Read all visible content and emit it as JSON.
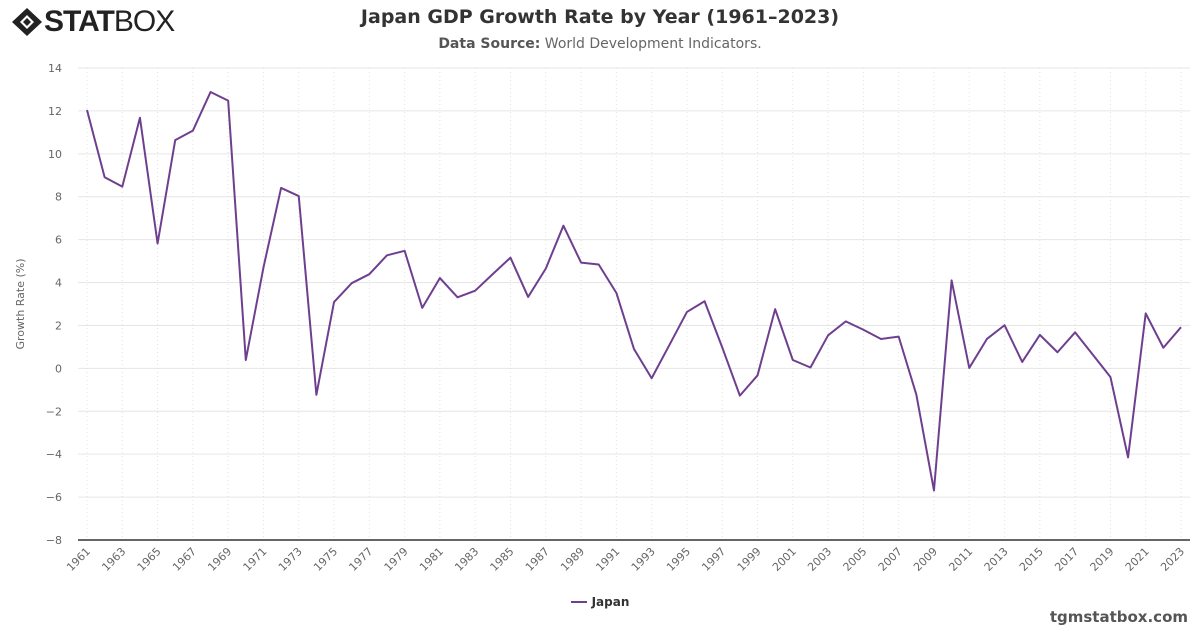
{
  "brand": {
    "logo_text_bold": "STAT",
    "logo_text_light": "BOX",
    "watermark": "tgmstatbox.com"
  },
  "chart_data": {
    "type": "line",
    "title": "Japan GDP Growth Rate by Year (1961–2023)",
    "subtitle_label": "Data Source:",
    "subtitle_value": " World Development Indicators.",
    "xlabel": "",
    "ylabel": "Growth Rate (%)",
    "ylim": [
      -8,
      14
    ],
    "yticks": [
      -8,
      -6,
      -4,
      -2,
      0,
      2,
      4,
      6,
      8,
      10,
      12,
      14
    ],
    "xticks": [
      1961,
      1963,
      1965,
      1967,
      1969,
      1971,
      1973,
      1975,
      1977,
      1979,
      1981,
      1983,
      1985,
      1987,
      1989,
      1991,
      1993,
      1995,
      1997,
      1999,
      2001,
      2003,
      2005,
      2007,
      2009,
      2011,
      2013,
      2015,
      2017,
      2019,
      2021,
      2023
    ],
    "grid": true,
    "legend": "bottom-center",
    "x": [
      1961,
      1962,
      1963,
      1964,
      1965,
      1966,
      1967,
      1968,
      1969,
      1970,
      1971,
      1972,
      1973,
      1974,
      1975,
      1976,
      1977,
      1978,
      1979,
      1980,
      1981,
      1982,
      1983,
      1984,
      1985,
      1986,
      1987,
      1988,
      1989,
      1990,
      1991,
      1992,
      1993,
      1994,
      1995,
      1996,
      1997,
      1998,
      1999,
      2000,
      2001,
      2002,
      2003,
      2004,
      2005,
      2006,
      2007,
      2008,
      2009,
      2010,
      2011,
      2012,
      2013,
      2014,
      2015,
      2016,
      2017,
      2018,
      2019,
      2020,
      2021,
      2022,
      2023
    ],
    "series": [
      {
        "name": "Japan",
        "color": "#6f3f8f",
        "values": [
          12.04,
          8.91,
          8.47,
          11.68,
          5.82,
          10.64,
          11.08,
          12.88,
          12.48,
          0.39,
          4.7,
          8.41,
          8.03,
          -1.23,
          3.09,
          3.97,
          4.39,
          5.27,
          5.48,
          2.82,
          4.21,
          3.31,
          3.62,
          4.4,
          5.16,
          3.33,
          4.65,
          6.65,
          4.93,
          4.84,
          3.52,
          0.9,
          -0.46,
          1.08,
          2.63,
          3.13,
          0.98,
          -1.27,
          -0.33,
          2.76,
          0.39,
          0.04,
          1.54,
          2.19,
          1.8,
          1.37,
          1.48,
          -1.22,
          -5.69,
          4.1,
          0.02,
          1.37,
          2.01,
          0.3,
          1.56,
          0.75,
          1.68,
          0.64,
          -0.4,
          -4.15,
          2.56,
          0.96,
          1.92
        ]
      }
    ]
  }
}
